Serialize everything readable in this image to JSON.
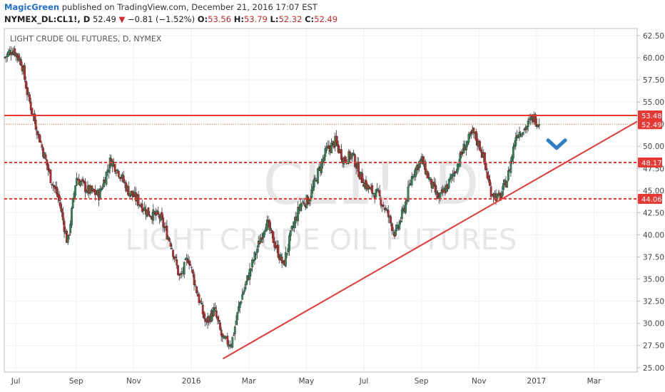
{
  "header": {
    "author": "MagicGreen",
    "published_text": "published on TradingView.com, December 21, 2016 17:07 EST",
    "symbol": "NYMEX_DL:CL1!, D",
    "last": "52.49",
    "change_arrow": "▼",
    "change": "−0.81 (−1.52%)",
    "open_label": "O:",
    "open": "53.56",
    "high_label": "H:",
    "high": "53.79",
    "low_label": "L:",
    "low": "52.32",
    "close_label": "C:",
    "close": "52.49"
  },
  "colors": {
    "up": "#2e8b57",
    "down": "#c62828",
    "line": "#e53935",
    "arrow": "#2f7fc8",
    "grid": "#eef0f2"
  },
  "icons": {
    "checkmark": "chevron-down-icon"
  },
  "chart_data": {
    "type": "candlestick",
    "title": "LIGHT CRUDE OIL FUTURES, D, NYMEX",
    "watermark": "CL1!, D",
    "watermark_sub": "LIGHT CRUDE OIL FUTURES",
    "ylim": [
      24.5,
      63.3
    ],
    "y_ticks": [
      "62.50",
      "60.00",
      "57.50",
      "55.00",
      "52.50",
      "50.00",
      "47.50",
      "45.00",
      "42.50",
      "40.00",
      "37.50",
      "35.00",
      "32.50",
      "30.00",
      "27.50",
      "25.00"
    ],
    "xlim": [
      0,
      22
    ],
    "x_ticks": [
      {
        "x": 0.4,
        "label": "Jul"
      },
      {
        "x": 2.5,
        "label": "Sep"
      },
      {
        "x": 4.5,
        "label": "Nov"
      },
      {
        "x": 6.5,
        "label": "2016"
      },
      {
        "x": 8.5,
        "label": "Mar"
      },
      {
        "x": 10.5,
        "label": "May"
      },
      {
        "x": 12.5,
        "label": "Jul"
      },
      {
        "x": 14.5,
        "label": "Sep"
      },
      {
        "x": 16.5,
        "label": "Nov"
      },
      {
        "x": 18.5,
        "label": "2017"
      },
      {
        "x": 20.5,
        "label": "Mar"
      }
    ],
    "price_path": [
      [
        0.0,
        60.0
      ],
      [
        0.3,
        61.0
      ],
      [
        0.6,
        59.5
      ],
      [
        0.8,
        56.0
      ],
      [
        1.0,
        53.5
      ],
      [
        1.3,
        50.0
      ],
      [
        1.6,
        46.5
      ],
      [
        1.9,
        44.0
      ],
      [
        2.2,
        39.0
      ],
      [
        2.5,
        46.5
      ],
      [
        2.9,
        45.0
      ],
      [
        3.3,
        44.5
      ],
      [
        3.7,
        48.5
      ],
      [
        4.0,
        47.0
      ],
      [
        4.3,
        45.0
      ],
      [
        4.6,
        44.0
      ],
      [
        5.0,
        42.5
      ],
      [
        5.4,
        42.0
      ],
      [
        5.8,
        39.0
      ],
      [
        6.1,
        35.0
      ],
      [
        6.4,
        37.5
      ],
      [
        6.7,
        33.5
      ],
      [
        7.0,
        30.0
      ],
      [
        7.3,
        31.5
      ],
      [
        7.6,
        28.0
      ],
      [
        7.9,
        27.8
      ],
      [
        8.2,
        32.5
      ],
      [
        8.5,
        35.5
      ],
      [
        8.8,
        38.5
      ],
      [
        9.1,
        41.5
      ],
      [
        9.4,
        39.0
      ],
      [
        9.7,
        36.5
      ],
      [
        10.0,
        40.5
      ],
      [
        10.3,
        43.5
      ],
      [
        10.6,
        44.0
      ],
      [
        10.9,
        47.0
      ],
      [
        11.2,
        49.5
      ],
      [
        11.5,
        50.5
      ],
      [
        11.8,
        48.5
      ],
      [
        12.1,
        49.0
      ],
      [
        12.4,
        46.5
      ],
      [
        12.7,
        45.0
      ],
      [
        13.0,
        44.5
      ],
      [
        13.3,
        42.5
      ],
      [
        13.6,
        40.0
      ],
      [
        13.9,
        43.0
      ],
      [
        14.2,
        47.0
      ],
      [
        14.5,
        48.5
      ],
      [
        14.8,
        46.0
      ],
      [
        15.1,
        44.0
      ],
      [
        15.4,
        45.5
      ],
      [
        15.7,
        47.5
      ],
      [
        16.0,
        50.0
      ],
      [
        16.3,
        51.5
      ],
      [
        16.6,
        49.5
      ],
      [
        16.9,
        45.0
      ],
      [
        17.2,
        44.0
      ],
      [
        17.5,
        46.5
      ],
      [
        17.8,
        51.5
      ],
      [
        18.1,
        52.0
      ],
      [
        18.4,
        53.3
      ],
      [
        18.6,
        52.49
      ]
    ],
    "last_close": 52.49,
    "resistance": 53.48,
    "levels": [
      48.17,
      44.06
    ],
    "trendline": [
      [
        7.6,
        26.0
      ],
      [
        22.0,
        52.8
      ]
    ],
    "price_labels": [
      "53.48",
      "52.49",
      "48.17",
      "44.06"
    ],
    "arrow_marker": {
      "x": 19.2,
      "y": 50.2
    }
  }
}
